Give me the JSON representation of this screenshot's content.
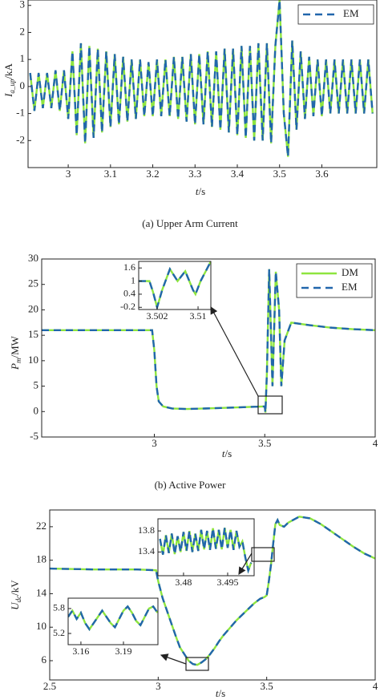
{
  "chart_data": [
    {
      "type": "line",
      "caption": "(a)  Upper Arm Current",
      "xlabel": {
        "symbol": "t",
        "unit": "/s"
      },
      "ylabel": {
        "symbol": "I",
        "subscript": "a_up",
        "unit": "/kA"
      },
      "xlim": [
        2.905,
        3.73
      ],
      "ylim": [
        -3,
        3.2
      ],
      "xticks": [
        3,
        3.1,
        3.2,
        3.3,
        3.4,
        3.5,
        3.6
      ],
      "yticks": [
        -2,
        -1,
        0,
        1,
        2,
        3
      ],
      "legend": "upper right",
      "x": [
        2.91,
        2.92,
        2.93,
        2.94,
        2.95,
        2.96,
        2.97,
        2.98,
        2.99,
        3.0,
        3.01,
        3.02,
        3.03,
        3.04,
        3.05,
        3.06,
        3.07,
        3.08,
        3.09,
        3.1,
        3.11,
        3.12,
        3.13,
        3.14,
        3.15,
        3.16,
        3.17,
        3.18,
        3.19,
        3.2,
        3.21,
        3.22,
        3.23,
        3.24,
        3.25,
        3.26,
        3.27,
        3.28,
        3.29,
        3.3,
        3.31,
        3.32,
        3.33,
        3.34,
        3.35,
        3.36,
        3.37,
        3.38,
        3.39,
        3.4,
        3.41,
        3.42,
        3.43,
        3.44,
        3.45,
        3.46,
        3.47,
        3.48,
        3.49,
        3.5,
        3.51,
        3.52,
        3.53,
        3.54,
        3.55,
        3.56,
        3.57,
        3.58,
        3.59,
        3.6,
        3.61,
        3.62,
        3.63,
        3.64,
        3.65,
        3.66,
        3.67,
        3.68,
        3.69,
        3.7,
        3.71,
        3.72
      ],
      "series": [
        {
          "color": "#8ee53f",
          "values": [
            0.5,
            -0.9,
            0.5,
            -0.8,
            0.5,
            -0.8,
            0.6,
            -0.9,
            0.6,
            -1.2,
            1.3,
            -1.8,
            1.6,
            -2.1,
            1.5,
            -1.9,
            1.4,
            -1.7,
            1.3,
            -1.5,
            1.2,
            -1.4,
            1.1,
            -1.3,
            1.0,
            -1.2,
            1.0,
            -1.1,
            0.9,
            -1.1,
            1.0,
            -1.1,
            1.0,
            -1.1,
            1.1,
            -1.2,
            1.1,
            -1.3,
            1.2,
            -1.4,
            1.2,
            -1.4,
            1.3,
            -1.5,
            1.3,
            -1.6,
            1.4,
            -1.7,
            1.4,
            -1.8,
            1.5,
            -1.9,
            1.5,
            -2.0,
            1.6,
            -2.0,
            1.6,
            -2.1,
            1.5,
            3.2,
            -1.0,
            -2.6,
            1.7,
            -1.6,
            1.3,
            -1.2,
            1.1,
            -1.1,
            1.0,
            -1.1,
            1.0,
            -1.0,
            1.0,
            -1.0,
            1.0,
            -1.0,
            1.0,
            -1.0,
            1.0,
            -1.0,
            1.0,
            -1.0
          ],
          "dash": false
        },
        {
          "name": "EM",
          "color": "#2166ac",
          "dash": true,
          "values": [
            0.5,
            -0.9,
            0.5,
            -0.8,
            0.5,
            -0.8,
            0.6,
            -0.9,
            0.6,
            -1.2,
            1.3,
            -1.8,
            1.6,
            -2.1,
            1.5,
            -1.9,
            1.4,
            -1.7,
            1.3,
            -1.5,
            1.2,
            -1.4,
            1.1,
            -1.3,
            1.0,
            -1.2,
            1.0,
            -1.1,
            0.9,
            -1.1,
            1.0,
            -1.1,
            1.0,
            -1.1,
            1.1,
            -1.2,
            1.1,
            -1.3,
            1.2,
            -1.4,
            1.2,
            -1.4,
            1.3,
            -1.5,
            1.3,
            -1.6,
            1.4,
            -1.7,
            1.4,
            -1.8,
            1.5,
            -1.9,
            1.5,
            -2.0,
            1.6,
            -2.0,
            1.6,
            -2.1,
            1.5,
            3.2,
            -1.0,
            -2.6,
            1.7,
            -1.6,
            1.3,
            -1.2,
            1.1,
            -1.1,
            1.0,
            -1.1,
            1.0,
            -1.0,
            1.0,
            -1.0,
            1.0,
            -1.0,
            1.0,
            -1.0,
            1.0,
            -1.0,
            1.0,
            -1.0
          ]
        }
      ]
    },
    {
      "type": "line",
      "caption": "(b)  Active Power",
      "xlabel": {
        "symbol": "t",
        "unit": "/s"
      },
      "ylabel": {
        "symbol": "P",
        "subscript": "m",
        "unit": "/MW"
      },
      "xlim": [
        2.49,
        4
      ],
      "ylim": [
        -5,
        30
      ],
      "xticks": [
        3,
        3.5,
        4
      ],
      "yticks": [
        -5,
        0,
        5,
        10,
        15,
        20,
        25,
        30
      ],
      "legend": "upper right",
      "x": [
        2.49,
        2.99,
        3.0,
        3.01,
        3.02,
        3.04,
        3.08,
        3.15,
        3.3,
        3.49,
        3.5,
        3.503,
        3.51,
        3.52,
        3.535,
        3.55,
        3.565,
        3.575,
        3.59,
        3.62,
        3.7,
        3.8,
        3.9,
        4.0
      ],
      "series": [
        {
          "name": "DM",
          "color": "#8ee53f",
          "dash": false,
          "values": [
            16,
            16,
            12,
            5,
            2,
            1,
            0.6,
            0.5,
            0.7,
            1,
            1,
            -0.2,
            8,
            28,
            5,
            27.5,
            20,
            5,
            14,
            17.5,
            17,
            16.5,
            16.2,
            16
          ]
        },
        {
          "name": "EM",
          "color": "#2166ac",
          "dash": true,
          "values": [
            16,
            16,
            12,
            5,
            2,
            1,
            0.6,
            0.5,
            0.7,
            1,
            1,
            -0.2,
            8,
            28,
            5,
            27.5,
            20,
            5,
            14,
            17.5,
            17,
            16.5,
            16.2,
            16
          ]
        }
      ]
    },
    {
      "type": "line",
      "xlabel": {
        "symbol": "t",
        "unit": "/s"
      },
      "ylabel": {
        "symbol": "U",
        "subscript": "dc",
        "unit": "/kV"
      },
      "xlim": [
        2.5,
        4
      ],
      "ylim": [
        3.7,
        24
      ],
      "xticks": [
        2.5,
        3,
        3.5,
        4
      ],
      "yticks": [
        6,
        10,
        14,
        18,
        22
      ],
      "x": [
        2.5,
        2.7,
        2.9,
        2.99,
        3.0,
        3.02,
        3.04,
        3.06,
        3.08,
        3.1,
        3.12,
        3.14,
        3.16,
        3.18,
        3.2,
        3.22,
        3.24,
        3.26,
        3.28,
        3.3,
        3.33,
        3.36,
        3.4,
        3.44,
        3.47,
        3.49,
        3.5,
        3.51,
        3.52,
        3.53,
        3.54,
        3.55,
        3.56,
        3.58,
        3.6,
        3.65,
        3.7,
        3.75,
        3.8,
        3.85,
        3.9,
        3.95,
        4.0
      ],
      "series": [
        {
          "color": "#8ee53f",
          "dash": false,
          "values": [
            17,
            16.9,
            16.9,
            16.8,
            15.5,
            13.5,
            12.0,
            10.5,
            9.0,
            7.6,
            6.8,
            6.0,
            5.6,
            5.5,
            5.8,
            6.2,
            6.8,
            7.5,
            8.3,
            9.0,
            9.9,
            10.8,
            11.8,
            12.8,
            13.4,
            13.6,
            13.8,
            15.5,
            17.5,
            20.0,
            22.3,
            22.8,
            22.2,
            22.0,
            22.5,
            23.2,
            23.0,
            22.3,
            21.4,
            20.5,
            19.6,
            18.8,
            18.2
          ]
        },
        {
          "color": "#2166ac",
          "dash": true,
          "values": [
            17,
            16.9,
            16.9,
            16.8,
            15.5,
            13.5,
            12.0,
            10.5,
            9.0,
            7.6,
            6.8,
            6.0,
            5.6,
            5.5,
            5.8,
            6.2,
            6.8,
            7.5,
            8.3,
            9.0,
            9.9,
            10.8,
            11.8,
            12.8,
            13.4,
            13.6,
            13.8,
            15.5,
            17.5,
            20.0,
            22.3,
            22.8,
            22.2,
            22.0,
            22.5,
            23.2,
            23.0,
            22.3,
            21.4,
            20.5,
            19.6,
            18.8,
            18.2
          ]
        }
      ]
    },
    {
      "type": "line",
      "xlim": [
        3.4984,
        3.5125
      ],
      "ylim": [
        -0.3,
        1.9
      ],
      "xticks": [
        3.502,
        3.51
      ],
      "yticks": [
        -0.2,
        0.4,
        1,
        1.6
      ],
      "x": [
        3.4984,
        3.5005,
        3.5012,
        3.502,
        3.503,
        3.5045,
        3.506,
        3.5075,
        3.509,
        3.5095,
        3.5105,
        3.5125
      ],
      "series": [
        {
          "color": "#8ee53f",
          "dash": false,
          "values": [
            1,
            1,
            0.5,
            -0.2,
            0.6,
            1.55,
            1.0,
            1.45,
            0.6,
            0.4,
            1.0,
            1.9
          ]
        },
        {
          "color": "#2166ac",
          "dash": true,
          "values": [
            1,
            1,
            0.5,
            -0.2,
            0.6,
            1.55,
            1.0,
            1.45,
            0.6,
            0.4,
            1.0,
            1.9
          ]
        }
      ]
    },
    {
      "type": "line",
      "xlim": [
        3.4713,
        3.504
      ],
      "ylim": [
        12.95,
        14.03
      ],
      "xticks": [
        3.48,
        3.495
      ],
      "yticks": [
        13.4,
        13.8
      ],
      "x": [
        3.472,
        3.473,
        3.474,
        3.475,
        3.476,
        3.477,
        3.478,
        3.479,
        3.48,
        3.481,
        3.482,
        3.483,
        3.484,
        3.485,
        3.486,
        3.487,
        3.488,
        3.489,
        3.49,
        3.491,
        3.492,
        3.493,
        3.494,
        3.495,
        3.496,
        3.497,
        3.498,
        3.499,
        3.5,
        3.501,
        3.502,
        3.503
      ],
      "series": [
        {
          "color": "#8ee53f",
          "dash": false,
          "values": [
            13.65,
            13.35,
            13.72,
            13.38,
            13.75,
            13.36,
            13.7,
            13.4,
            13.78,
            13.42,
            13.8,
            13.4,
            13.75,
            13.42,
            13.82,
            13.45,
            13.8,
            13.44,
            13.85,
            13.46,
            13.82,
            13.45,
            13.86,
            13.48,
            13.82,
            13.44,
            13.8,
            13.5,
            13.6,
            13.3,
            13.05,
            13.2
          ]
        },
        {
          "color": "#2166ac",
          "dash": true,
          "values": [
            13.65,
            13.35,
            13.72,
            13.38,
            13.75,
            13.36,
            13.7,
            13.4,
            13.78,
            13.42,
            13.8,
            13.4,
            13.75,
            13.42,
            13.82,
            13.45,
            13.8,
            13.44,
            13.85,
            13.46,
            13.82,
            13.45,
            13.86,
            13.48,
            13.82,
            13.44,
            13.8,
            13.5,
            13.6,
            13.3,
            13.05,
            13.2
          ]
        }
      ]
    },
    {
      "type": "line",
      "xlim": [
        3.151,
        3.2143
      ],
      "ylim": [
        4.93,
        6.05
      ],
      "xticks": [
        3.16,
        3.19
      ],
      "yticks": [
        5.2,
        5.8
      ],
      "x": [
        3.151,
        3.154,
        3.157,
        3.16,
        3.163,
        3.166,
        3.169,
        3.172,
        3.175,
        3.178,
        3.181,
        3.184,
        3.187,
        3.19,
        3.193,
        3.196,
        3.199,
        3.202,
        3.205,
        3.208,
        3.211,
        3.214
      ],
      "series": [
        {
          "color": "#8ee53f",
          "dash": false,
          "values": [
            5.6,
            5.75,
            5.55,
            5.7,
            5.45,
            5.3,
            5.45,
            5.6,
            5.75,
            5.6,
            5.45,
            5.35,
            5.55,
            5.75,
            5.85,
            5.7,
            5.5,
            5.4,
            5.6,
            5.8,
            5.85,
            5.7
          ]
        },
        {
          "color": "#2166ac",
          "dash": true,
          "values": [
            5.6,
            5.75,
            5.55,
            5.7,
            5.45,
            5.3,
            5.45,
            5.6,
            5.75,
            5.6,
            5.45,
            5.35,
            5.55,
            5.75,
            5.85,
            5.7,
            5.5,
            5.4,
            5.6,
            5.8,
            5.85,
            5.7
          ]
        }
      ]
    }
  ]
}
